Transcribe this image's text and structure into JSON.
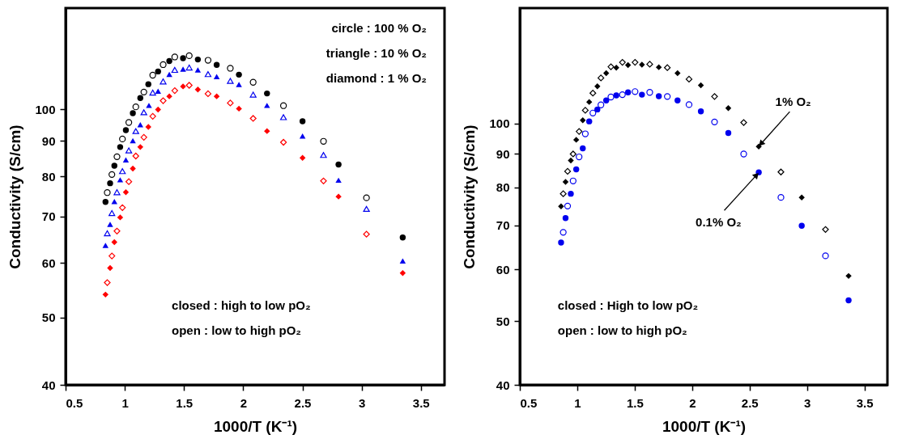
{
  "chart_data": [
    {
      "type": "scatter",
      "xlabel": "1000/T (K⁻¹)",
      "ylabel": "Conductivity (S/cm)",
      "log": "y",
      "grid": false,
      "xlim": [
        0.5,
        3.7
      ],
      "ylim": [
        40,
        140
      ],
      "xticks": [
        0.5,
        1,
        1.5,
        2,
        2.5,
        3,
        3.5
      ],
      "yticks": [
        40,
        50,
        60,
        70,
        80,
        90,
        100
      ],
      "annotations": [
        "circle : 100 % O₂",
        "triangle : 10 % O₂",
        "diamond : 1 % O₂",
        "closed : high to low pO₂",
        "open : low to high pO₂"
      ],
      "series": [
        {
          "color": "#000000",
          "marker": "circle",
          "x": [
            0.837,
            0.876,
            0.912,
            0.961,
            1.009,
            1.068,
            1.131,
            1.199,
            1.281,
            1.376,
            1.492,
            1.617,
            1.776,
            1.964,
            2.201,
            2.501,
            2.805,
            3.347
          ],
          "values": [
            73.5,
            78.2,
            82.9,
            88.2,
            93.3,
            98.7,
            103.8,
            108.7,
            113.4,
            117.4,
            118.5,
            118.0,
            115.9,
            112.2,
            105.4,
            96.1,
            83.2,
            65.3
          ]
        },
        {
          "color": "#000000",
          "marker": "circle",
          "x": [
            0.852,
            0.891,
            0.934,
            0.98,
            1.034,
            1.093,
            1.161,
            1.236,
            1.324,
            1.422,
            1.544,
            1.703,
            1.891,
            2.084,
            2.34,
            2.678,
            3.041
          ],
          "values": [
            75.8,
            80.5,
            85.4,
            90.6,
            95.7,
            100.8,
            105.9,
            112.0,
            116.0,
            119.0,
            119.5,
            117.7,
            114.6,
            109.4,
            101.2,
            89.9,
            74.5
          ]
        },
        {
          "color": "#0000ee",
          "marker": "triangle",
          "x": [
            0.837,
            0.876,
            0.912,
            0.961,
            1.009,
            1.068,
            1.131,
            1.204,
            1.281,
            1.376,
            1.492,
            1.617,
            1.776,
            1.964,
            2.201,
            2.501,
            2.805,
            3.347
          ],
          "values": [
            63.6,
            68.2,
            73.6,
            79.1,
            84.5,
            90.1,
            95.0,
            101.3,
            106.2,
            112.3,
            114.3,
            114.0,
            111.5,
            108.6,
            101.3,
            91.5,
            79.0,
            60.4
          ]
        },
        {
          "color": "#0000ee",
          "marker": "triangle",
          "x": [
            0.852,
            0.891,
            0.934,
            0.98,
            1.034,
            1.093,
            1.161,
            1.236,
            1.324,
            1.422,
            1.544,
            1.703,
            1.891,
            2.084,
            2.34,
            2.678,
            3.041
          ],
          "values": [
            66.2,
            70.8,
            75.9,
            81.4,
            87.2,
            93.0,
            99.0,
            105.7,
            109.7,
            114.0,
            114.9,
            112.4,
            109.9,
            105.0,
            97.4,
            85.9,
            71.8
          ]
        },
        {
          "color": "#ff0000",
          "marker": "diamond",
          "x": [
            0.837,
            0.876,
            0.912,
            0.961,
            1.009,
            1.068,
            1.131,
            1.199,
            1.281,
            1.376,
            1.492,
            1.617,
            1.776,
            1.964,
            2.201,
            2.501,
            2.805,
            3.347
          ],
          "values": [
            54.0,
            59.0,
            64.3,
            69.8,
            75.9,
            82.1,
            88.2,
            94.3,
            99.9,
            104.4,
            107.9,
            106.8,
            104.4,
            100.2,
            93.0,
            85.1,
            74.8,
            58.0
          ]
        },
        {
          "color": "#ff0000",
          "marker": "diamond",
          "x": [
            0.852,
            0.891,
            0.934,
            0.98,
            1.034,
            1.093,
            1.161,
            1.236,
            1.324,
            1.422,
            1.544,
            1.703,
            1.891,
            2.084,
            2.34,
            2.678,
            3.041
          ],
          "values": [
            56.2,
            61.4,
            66.7,
            72.1,
            78.6,
            85.6,
            91.1,
            97.7,
            102.9,
            106.4,
            108.3,
            105.3,
            102.1,
            97.0,
            89.6,
            78.8,
            66.0
          ]
        }
      ]
    },
    {
      "type": "scatter",
      "xlabel": "1000/T (K⁻¹)",
      "ylabel": "Conductivity (S/cm)",
      "log": "y",
      "grid": false,
      "xlim": [
        0.5,
        3.7
      ],
      "ylim": [
        40,
        150
      ],
      "xticks": [
        0.5,
        1,
        1.5,
        2,
        2.5,
        3,
        3.5
      ],
      "yticks": [
        40,
        50,
        60,
        70,
        80,
        90,
        100
      ],
      "annotations": [
        {
          "text": "1% O₂",
          "x": 2.58,
          "y": 92.3
        },
        {
          "text": "0.1% O₂",
          "x": 2.58,
          "y": 84.3
        },
        "closed : High to low pO₂",
        "open : low to high pO₂"
      ],
      "series": [
        {
          "color": "#000000",
          "marker": "diamond",
          "x": [
            0.859,
            0.898,
            0.944,
            0.991,
            1.048,
            1.104,
            1.175,
            1.252,
            1.34,
            1.442,
            1.563,
            1.71,
            1.873,
            2.076,
            2.315,
            2.58,
            2.954,
            3.362
          ],
          "values": [
            74.8,
            81.5,
            87.9,
            94.5,
            101.2,
            107.9,
            114.0,
            119.4,
            121.7,
            122.8,
            123.0,
            121.9,
            119.4,
            114.4,
            105.6,
            92.3,
            77.2,
            58.6
          ]
        },
        {
          "color": "#000000",
          "marker": "diamond",
          "x": [
            0.878,
            0.916,
            0.964,
            1.016,
            1.07,
            1.136,
            1.206,
            1.293,
            1.393,
            1.503,
            1.631,
            1.784,
            1.973,
            2.195,
            2.449,
            2.773,
            3.161
          ],
          "values": [
            78.2,
            84.6,
            89.9,
            97.3,
            104.8,
            111.3,
            117.4,
            122.1,
            124.0,
            124.0,
            123.2,
            121.7,
            116.9,
            110.0,
            100.4,
            84.4,
            69.0
          ]
        },
        {
          "color": "#0000ee",
          "marker": "circle",
          "x": [
            0.859,
            0.898,
            0.944,
            0.991,
            1.048,
            1.104,
            1.175,
            1.252,
            1.34,
            1.442,
            1.563,
            1.71,
            1.873,
            2.076,
            2.315,
            2.58,
            2.954,
            3.362
          ],
          "values": [
            65.9,
            71.8,
            78.2,
            85.2,
            91.7,
            100.8,
            105.1,
            108.5,
            110.4,
            111.6,
            110.7,
            110.1,
            108.5,
            104.4,
            96.8,
            84.3,
            69.9,
            53.8
          ]
        },
        {
          "color": "#0000ee",
          "marker": "circle",
          "x": [
            0.878,
            0.916,
            0.964,
            1.016,
            1.07,
            1.136,
            1.206,
            1.293,
            1.393,
            1.503,
            1.631,
            1.784,
            1.973,
            2.195,
            2.449,
            2.773,
            3.161
          ],
          "values": [
            68.3,
            74.9,
            81.8,
            89.0,
            96.5,
            103.8,
            106.8,
            109.8,
            110.7,
            111.9,
            111.6,
            110.0,
            106.9,
            100.6,
            89.9,
            77.2,
            62.9
          ]
        }
      ]
    }
  ]
}
